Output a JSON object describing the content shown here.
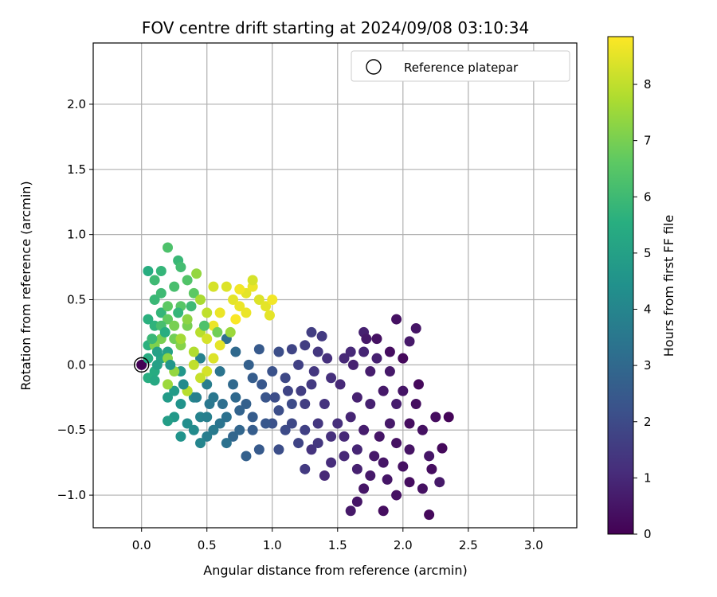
{
  "chart_data": {
    "type": "scatter",
    "title": "FOV centre drift starting at 2024/09/08 03:10:34",
    "xlabel": "Angular distance from reference (arcmin)",
    "ylabel": "Rotation from reference (arcmin)",
    "xlim": [
      -0.37,
      3.33
    ],
    "ylim": [
      -1.25,
      2.47
    ],
    "xticks": [
      0.0,
      0.5,
      1.0,
      1.5,
      2.0,
      2.5,
      3.0
    ],
    "xtick_labels": [
      "0.0",
      "0.5",
      "1.0",
      "1.5",
      "2.0",
      "2.5",
      "3.0"
    ],
    "yticks": [
      -1.0,
      -0.5,
      0.0,
      0.5,
      1.0,
      1.5,
      2.0
    ],
    "ytick_labels": [
      "−1.0",
      "−0.5",
      "0.0",
      "0.5",
      "1.0",
      "1.5",
      "2.0"
    ],
    "grid": true,
    "legend": {
      "placement": "top-right",
      "entries": [
        "Reference platepar"
      ]
    },
    "colormap": "viridis",
    "colorbar": {
      "label": "Hours from first FF file",
      "range": [
        0,
        8.85
      ],
      "ticks": [
        0,
        1,
        2,
        3,
        4,
        5,
        6,
        7,
        8
      ],
      "tick_labels": [
        "0",
        "1",
        "2",
        "3",
        "4",
        "5",
        "6",
        "7",
        "8"
      ]
    },
    "reference_point": {
      "x": 0.0,
      "y": 0.0
    },
    "points": [
      [
        0.0,
        0.0,
        0.02
      ],
      [
        1.95,
        0.35,
        0.4
      ],
      [
        2.1,
        0.28,
        0.5
      ],
      [
        1.7,
        0.25,
        0.8
      ],
      [
        2.05,
        0.18,
        0.6
      ],
      [
        2.25,
        -0.4,
        0.3
      ],
      [
        2.35,
        -0.4,
        0.1
      ],
      [
        2.3,
        -0.64,
        0.2
      ],
      [
        2.2,
        -0.7,
        0.5
      ],
      [
        2.22,
        -0.8,
        0.3
      ],
      [
        2.28,
        -0.9,
        0.6
      ],
      [
        2.2,
        -1.15,
        0.2
      ],
      [
        2.15,
        -0.95,
        0.4
      ],
      [
        2.05,
        -0.9,
        0.3
      ],
      [
        1.95,
        -1.0,
        0.4
      ],
      [
        1.85,
        -1.12,
        0.3
      ],
      [
        1.65,
        -1.05,
        0.5
      ],
      [
        1.6,
        -1.12,
        0.6
      ],
      [
        1.7,
        -0.95,
        0.5
      ],
      [
        1.88,
        -0.88,
        0.5
      ],
      [
        2.0,
        -0.78,
        0.4
      ],
      [
        1.95,
        -0.3,
        0.7
      ],
      [
        1.9,
        -0.45,
        0.6
      ],
      [
        1.82,
        -0.55,
        0.5
      ],
      [
        2.05,
        -0.65,
        0.45
      ],
      [
        2.1,
        -0.3,
        0.35
      ],
      [
        1.75,
        -0.3,
        0.8
      ],
      [
        1.7,
        -0.5,
        0.7
      ],
      [
        1.85,
        -0.2,
        0.6
      ],
      [
        2.0,
        -0.2,
        0.5
      ],
      [
        2.15,
        -0.5,
        0.4
      ],
      [
        1.78,
        -0.7,
        0.6
      ],
      [
        1.65,
        -0.65,
        0.9
      ],
      [
        1.55,
        -0.55,
        1.0
      ],
      [
        1.6,
        -0.4,
        0.9
      ],
      [
        1.65,
        -0.25,
        0.8
      ],
      [
        1.75,
        -0.05,
        0.7
      ],
      [
        1.8,
        0.05,
        0.8
      ],
      [
        1.9,
        -0.05,
        0.6
      ],
      [
        1.7,
        0.1,
        0.9
      ],
      [
        1.6,
        0.1,
        1.0
      ],
      [
        1.55,
        0.05,
        1.0
      ],
      [
        1.45,
        -0.1,
        1.2
      ],
      [
        1.4,
        -0.3,
        1.3
      ],
      [
        1.5,
        -0.45,
        1.2
      ],
      [
        1.45,
        -0.75,
        1.1
      ],
      [
        1.4,
        -0.85,
        1.0
      ],
      [
        1.3,
        -0.65,
        1.3
      ],
      [
        1.25,
        -0.8,
        1.5
      ],
      [
        1.35,
        -0.45,
        1.4
      ],
      [
        1.25,
        -0.3,
        1.6
      ],
      [
        1.3,
        -0.15,
        1.5
      ],
      [
        1.2,
        0.0,
        1.7
      ],
      [
        1.25,
        0.15,
        1.6
      ],
      [
        1.3,
        0.25,
        1.6
      ],
      [
        1.38,
        0.22,
        1.5
      ],
      [
        1.35,
        0.1,
        1.4
      ],
      [
        1.15,
        0.12,
        1.8
      ],
      [
        1.1,
        -0.1,
        1.9
      ],
      [
        1.15,
        -0.3,
        2.0
      ],
      [
        1.1,
        -0.5,
        2.0
      ],
      [
        1.05,
        -0.65,
        2.1
      ],
      [
        1.2,
        -0.6,
        1.8
      ],
      [
        1.0,
        -0.45,
        2.2
      ],
      [
        0.95,
        -0.25,
        2.3
      ],
      [
        1.0,
        -0.05,
        2.2
      ],
      [
        1.05,
        0.1,
        2.1
      ],
      [
        0.9,
        0.12,
        2.5
      ],
      [
        0.85,
        -0.1,
        2.6
      ],
      [
        0.8,
        -0.3,
        2.7
      ],
      [
        0.85,
        -0.5,
        2.6
      ],
      [
        0.9,
        -0.65,
        2.5
      ],
      [
        0.8,
        -0.7,
        2.7
      ],
      [
        0.7,
        -0.55,
        2.9
      ],
      [
        0.75,
        -0.35,
        2.8
      ],
      [
        0.7,
        -0.15,
        3.0
      ],
      [
        0.72,
        0.1,
        3.0
      ],
      [
        0.65,
        0.2,
        3.2
      ],
      [
        0.6,
        -0.05,
        3.4
      ],
      [
        0.55,
        -0.25,
        3.5
      ],
      [
        0.6,
        -0.45,
        3.4
      ],
      [
        0.65,
        -0.6,
        3.3
      ],
      [
        0.5,
        -0.55,
        3.7
      ],
      [
        0.45,
        -0.4,
        3.9
      ],
      [
        0.5,
        -0.15,
        3.7
      ],
      [
        0.45,
        0.05,
        3.9
      ],
      [
        0.4,
        -0.25,
        4.1
      ],
      [
        0.35,
        -0.45,
        4.3
      ],
      [
        0.3,
        -0.55,
        4.5
      ],
      [
        0.25,
        -0.4,
        4.7
      ],
      [
        0.2,
        -0.43,
        4.9
      ],
      [
        0.25,
        -0.2,
        4.8
      ],
      [
        0.3,
        -0.05,
        4.6
      ],
      [
        0.2,
        0.1,
        5.0
      ],
      [
        0.15,
        0.05,
        5.2
      ],
      [
        0.1,
        -0.05,
        5.4
      ],
      [
        0.05,
        -0.1,
        5.5
      ],
      [
        0.1,
        -0.12,
        5.3
      ],
      [
        0.05,
        0.15,
        5.6
      ],
      [
        0.1,
        0.3,
        5.7
      ],
      [
        0.05,
        0.35,
        5.6
      ],
      [
        0.15,
        0.4,
        5.8
      ],
      [
        0.1,
        0.5,
        5.9
      ],
      [
        0.15,
        0.55,
        6.0
      ],
      [
        0.05,
        0.72,
        5.5
      ],
      [
        0.1,
        0.65,
        6.0
      ],
      [
        0.15,
        0.72,
        5.8
      ],
      [
        0.2,
        0.9,
        6.3
      ],
      [
        0.28,
        0.8,
        5.9
      ],
      [
        0.3,
        0.75,
        6.1
      ],
      [
        0.25,
        0.6,
        6.2
      ],
      [
        0.35,
        0.65,
        6.4
      ],
      [
        0.4,
        0.55,
        6.6
      ],
      [
        0.3,
        0.45,
        6.5
      ],
      [
        0.2,
        0.35,
        6.7
      ],
      [
        0.25,
        0.2,
        6.9
      ],
      [
        0.35,
        0.3,
        7.0
      ],
      [
        0.3,
        0.15,
        7.2
      ],
      [
        0.15,
        0.2,
        7.0
      ],
      [
        0.1,
        0.15,
        7.1
      ],
      [
        0.2,
        0.05,
        7.3
      ],
      [
        0.25,
        -0.05,
        7.4
      ],
      [
        0.2,
        -0.15,
        7.5
      ],
      [
        0.35,
        -0.2,
        7.6
      ],
      [
        0.4,
        0.1,
        7.8
      ],
      [
        0.45,
        0.25,
        7.9
      ],
      [
        0.5,
        0.4,
        8.0
      ],
      [
        0.45,
        0.5,
        7.7
      ],
      [
        0.42,
        0.7,
        7.4
      ],
      [
        0.55,
        0.6,
        8.3
      ],
      [
        0.65,
        0.6,
        8.4
      ],
      [
        0.7,
        0.5,
        8.5
      ],
      [
        0.75,
        0.45,
        8.6
      ],
      [
        0.8,
        0.55,
        8.5
      ],
      [
        0.85,
        0.6,
        8.6
      ],
      [
        0.9,
        0.5,
        8.4
      ],
      [
        0.95,
        0.45,
        8.5
      ],
      [
        1.0,
        0.5,
        8.7
      ],
      [
        0.98,
        0.38,
        8.5
      ],
      [
        0.85,
        0.65,
        8.3
      ],
      [
        0.75,
        0.58,
        8.7
      ],
      [
        0.8,
        0.4,
        8.6
      ],
      [
        0.72,
        0.35,
        8.8
      ],
      [
        0.6,
        0.4,
        8.6
      ],
      [
        0.55,
        0.3,
        8.6
      ],
      [
        0.5,
        0.2,
        8.3
      ],
      [
        0.6,
        0.15,
        8.5
      ],
      [
        0.55,
        0.05,
        8.4
      ],
      [
        0.5,
        -0.05,
        8.3
      ],
      [
        0.45,
        -0.1,
        8.1
      ],
      [
        0.35,
        -0.2,
        7.9
      ],
      [
        0.4,
        0.0,
        8.0
      ],
      [
        0.3,
        0.2,
        7.6
      ],
      [
        0.35,
        0.35,
        7.3
      ],
      [
        0.25,
        0.3,
        7.0
      ],
      [
        0.2,
        0.45,
        6.6
      ],
      [
        0.15,
        0.3,
        6.2
      ],
      [
        0.08,
        0.2,
        5.9
      ],
      [
        0.05,
        0.05,
        5.4
      ],
      [
        0.12,
        0.1,
        5.0
      ],
      [
        0.2,
        -0.25,
        4.8
      ],
      [
        0.3,
        -0.3,
        4.5
      ],
      [
        0.4,
        -0.5,
        4.2
      ],
      [
        0.45,
        -0.6,
        4.0
      ],
      [
        0.5,
        -0.4,
        3.8
      ],
      [
        0.55,
        -0.5,
        3.6
      ],
      [
        0.65,
        -0.4,
        3.3
      ],
      [
        0.75,
        -0.5,
        2.9
      ],
      [
        0.85,
        -0.4,
        2.6
      ],
      [
        0.95,
        -0.45,
        2.4
      ],
      [
        1.05,
        -0.35,
        2.1
      ],
      [
        1.15,
        -0.45,
        1.9
      ],
      [
        1.25,
        -0.5,
        1.7
      ],
      [
        1.35,
        -0.6,
        1.4
      ],
      [
        1.45,
        -0.55,
        1.2
      ],
      [
        1.55,
        -0.7,
        1.0
      ],
      [
        1.65,
        -0.8,
        0.8
      ],
      [
        1.75,
        -0.85,
        0.6
      ],
      [
        1.85,
        -0.75,
        0.5
      ],
      [
        1.95,
        -0.6,
        0.4
      ],
      [
        2.05,
        -0.45,
        0.3
      ],
      [
        2.12,
        -0.15,
        0.2
      ],
      [
        2.0,
        0.05,
        0.2
      ],
      [
        1.9,
        0.1,
        0.3
      ],
      [
        1.8,
        0.2,
        0.4
      ],
      [
        1.72,
        0.2,
        0.6
      ],
      [
        1.62,
        0.0,
        0.8
      ],
      [
        1.52,
        -0.15,
        1.0
      ],
      [
        1.42,
        0.05,
        1.2
      ],
      [
        1.32,
        -0.05,
        1.4
      ],
      [
        1.22,
        -0.2,
        1.6
      ],
      [
        1.12,
        -0.2,
        1.8
      ],
      [
        1.02,
        -0.25,
        2.1
      ],
      [
        0.92,
        -0.15,
        2.4
      ],
      [
        0.82,
        0.0,
        2.7
      ],
      [
        0.72,
        -0.25,
        3.0
      ],
      [
        0.62,
        -0.3,
        3.2
      ],
      [
        0.52,
        -0.3,
        3.5
      ],
      [
        0.42,
        -0.25,
        3.8
      ],
      [
        0.32,
        -0.15,
        4.2
      ],
      [
        0.22,
        0.0,
        4.6
      ],
      [
        0.12,
        0.0,
        5.0
      ],
      [
        0.18,
        0.25,
        5.5
      ],
      [
        0.28,
        0.4,
        5.8
      ],
      [
        0.38,
        0.45,
        6.0
      ],
      [
        0.48,
        0.3,
        6.3
      ],
      [
        0.58,
        0.25,
        6.9
      ],
      [
        0.68,
        0.25,
        7.5
      ]
    ]
  }
}
